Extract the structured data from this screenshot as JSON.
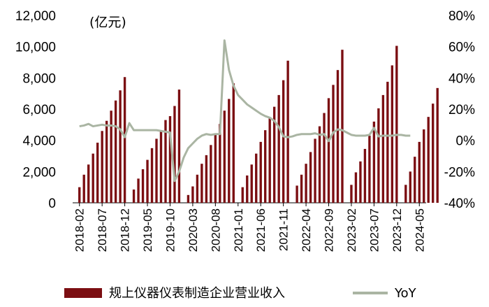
{
  "chart_data": {
    "type": "bar+line",
    "unit_label": "(亿元)",
    "x_tick_labels": [
      "2018-02",
      "2018-07",
      "2018-12",
      "2019-05",
      "2019-10",
      "2020-03",
      "2020-08",
      "2021-01",
      "2021-06",
      "2021-11",
      "2022-04",
      "2022-09",
      "2023-02",
      "2023-07",
      "2023-12",
      "2024-05"
    ],
    "left_axis": {
      "min": 0,
      "max": 12000,
      "ticks": [
        "0",
        "2,000",
        "4,000",
        "6,000",
        "8,000",
        "10,000",
        "12,000"
      ]
    },
    "right_axis": {
      "min": -40,
      "max": 80,
      "ticks": [
        "-40%",
        "-20%",
        "0%",
        "20%",
        "40%",
        "60%",
        "80%"
      ]
    },
    "series": [
      {
        "name": "规上仪器仪表制造企业营业收入",
        "kind": "bar",
        "color": "#7B0E12",
        "years": [
          {
            "start": "2018-02",
            "values": [
              1000,
              1800,
              2450,
              3150,
              3850,
              4600,
              5250,
              5900,
              6550,
              7200,
              8050
            ]
          },
          {
            "start": "2019-02",
            "values": [
              850,
              1550,
              2150,
              2750,
              3500,
              4100,
              4650,
              5300,
              5550,
              6200,
              7250
            ]
          },
          {
            "start": "2020-02",
            "values": [
              500,
              1050,
              1800,
              2500,
              3050,
              3700,
              4350,
              5050,
              5900,
              6650,
              7650
            ]
          },
          {
            "start": "2021-02",
            "values": [
              1000,
              1750,
              2450,
              3150,
              3900,
              4650,
              5400,
              6150,
              6900,
              7850,
              9100
            ]
          },
          {
            "start": "2022-02",
            "values": [
              1100,
              1800,
              2500,
              3250,
              4100,
              4900,
              5750,
              6700,
              7550,
              8500,
              9800
            ]
          },
          {
            "start": "2023-02",
            "values": [
              1150,
              1950,
              2650,
              3450,
              4300,
              5200,
              6050,
              6900,
              7750,
              8800,
              10050
            ]
          },
          {
            "start": "2024-02",
            "values": [
              1150,
              2000,
              2950,
              3900,
              4700,
              5500,
              6350,
              7350
            ]
          }
        ]
      },
      {
        "name": "YoY",
        "kind": "line",
        "color": "#AAB5A3",
        "values": [
          9,
          9.5,
          10.5,
          9,
          9.5,
          10,
          9.5,
          9.5,
          9,
          7,
          2,
          11,
          6.5,
          6.5,
          6.5,
          6.5,
          6.5,
          6.5,
          6,
          5.5,
          5,
          -26,
          -20,
          -11,
          -5,
          -2,
          1,
          3,
          4,
          3.5,
          4,
          4,
          64,
          45,
          35,
          29,
          26,
          23,
          21,
          19,
          17,
          15.5,
          14.5,
          12.5,
          8.5,
          2.5,
          2,
          2.5,
          3.5,
          4,
          4,
          4,
          4.5,
          3.5,
          4,
          -0.5,
          5,
          7,
          6.5,
          5,
          3.5,
          3,
          3,
          3,
          3.5,
          8,
          2.5,
          3,
          3,
          3,
          3.5,
          3.5,
          3,
          3
        ]
      }
    ],
    "legend": {
      "position": "bottom"
    }
  }
}
